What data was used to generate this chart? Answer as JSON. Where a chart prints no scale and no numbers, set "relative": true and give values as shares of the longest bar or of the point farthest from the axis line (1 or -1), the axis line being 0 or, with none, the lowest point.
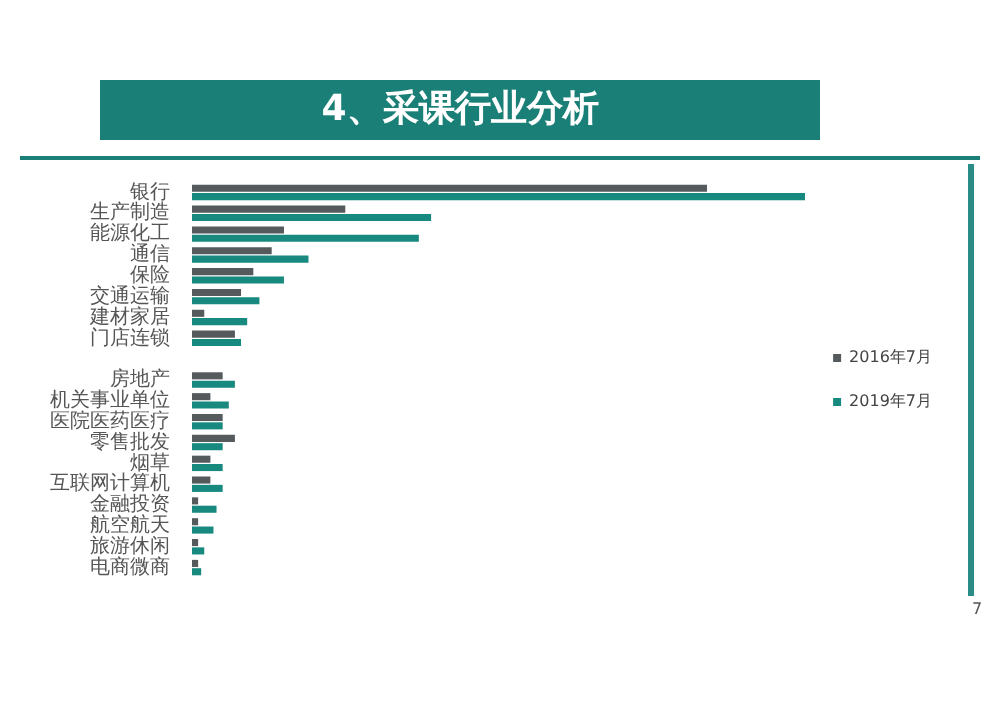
{
  "chart_data": {
    "type": "bar",
    "orientation": "horizontal",
    "relative": true,
    "title": "4、采课行业分析",
    "categories": [
      "银行",
      "生产制造",
      "能源化工",
      "通信",
      "保险",
      "交通运输",
      "建材家居",
      "门店连锁",
      null,
      "房地产",
      "机关事业单位",
      "医院医药医疗",
      "零售批发",
      "烟草",
      "互联网计算机",
      "金融投资",
      "航空航天",
      "旅游休闲",
      "电商微商"
    ],
    "series": [
      {
        "name": "2016年7月",
        "color": "#555a5c",
        "values": [
          0.84,
          0.25,
          0.15,
          0.13,
          0.1,
          0.08,
          0.02,
          0.07,
          null,
          0.05,
          0.03,
          0.05,
          0.07,
          0.03,
          0.03,
          0.01,
          0.01,
          0.01,
          0.01
        ]
      },
      {
        "name": "2019年7月",
        "color": "#17897f",
        "values": [
          1,
          0.39,
          0.37,
          0.19,
          0.15,
          0.11,
          0.09,
          0.08,
          null,
          0.07,
          0.06,
          0.05,
          0.05,
          0.05,
          0.05,
          0.04,
          0.035,
          0.02,
          0.015
        ]
      }
    ],
    "legend": "right",
    "annotations": [
      "7"
    ]
  }
}
